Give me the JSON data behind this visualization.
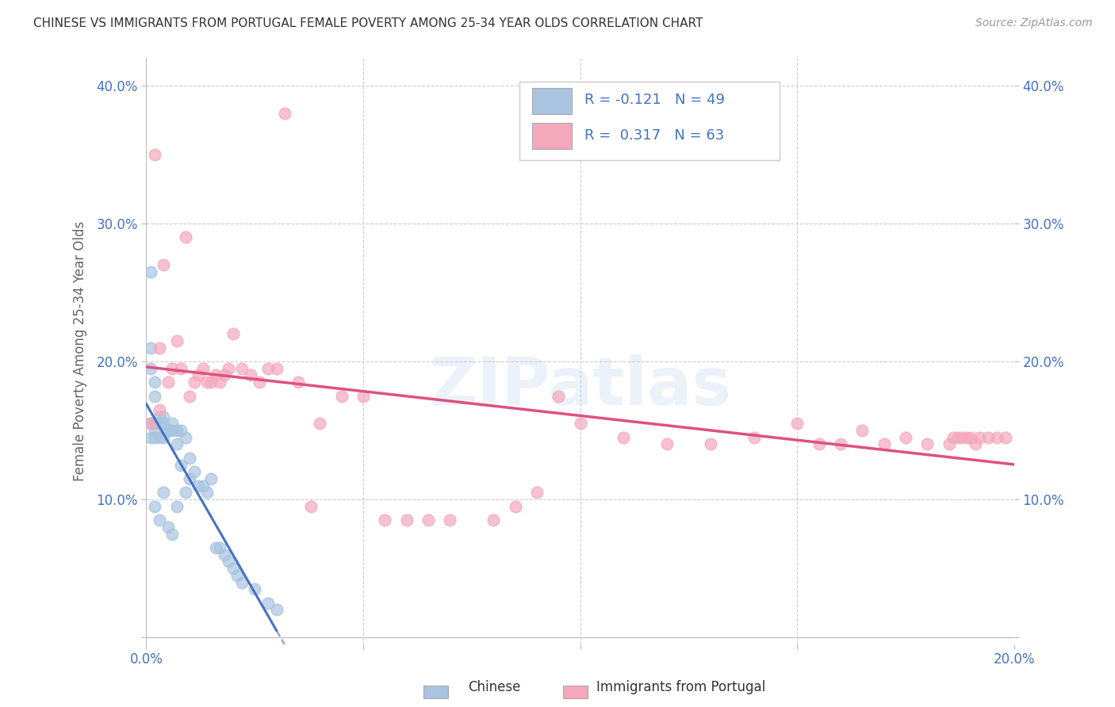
{
  "title": "CHINESE VS IMMIGRANTS FROM PORTUGAL FEMALE POVERTY AMONG 25-34 YEAR OLDS CORRELATION CHART",
  "source": "Source: ZipAtlas.com",
  "ylabel": "Female Poverty Among 25-34 Year Olds",
  "background_color": "#ffffff",
  "grid_color": "#cccccc",
  "watermark": "ZIPatlas",
  "chinese_color": "#a8c4e0",
  "portuguese_color": "#f4a8bc",
  "chinese_line_color": "#4472c4",
  "portuguese_line_color": "#e05080",
  "xlim": [
    0.0,
    0.2
  ],
  "ylim": [
    -0.005,
    0.42
  ],
  "xticks": [
    0.0,
    0.05,
    0.1,
    0.15,
    0.2
  ],
  "yticks": [
    0.0,
    0.1,
    0.2,
    0.3,
    0.4
  ],
  "xtick_labels": [
    "0.0%",
    "",
    "",
    "",
    "20.0%"
  ],
  "ytick_labels": [
    "",
    "10.0%",
    "20.0%",
    "30.0%",
    "40.0%"
  ],
  "right_ytick_labels": [
    "",
    "10.0%",
    "20.0%",
    "30.0%",
    "40.0%"
  ],
  "chinese_R": -0.121,
  "chinese_N": 49,
  "portuguese_R": 0.317,
  "portuguese_N": 63,
  "legend_text_color": "#4472c4",
  "chinese_x": [
    0.001,
    0.001,
    0.001,
    0.001,
    0.001,
    0.002,
    0.002,
    0.002,
    0.002,
    0.002,
    0.002,
    0.003,
    0.003,
    0.003,
    0.003,
    0.004,
    0.004,
    0.004,
    0.004,
    0.005,
    0.005,
    0.005,
    0.006,
    0.006,
    0.006,
    0.007,
    0.007,
    0.007,
    0.008,
    0.008,
    0.009,
    0.009,
    0.01,
    0.01,
    0.011,
    0.012,
    0.013,
    0.014,
    0.015,
    0.016,
    0.017,
    0.018,
    0.019,
    0.02,
    0.021,
    0.022,
    0.025,
    0.028,
    0.03
  ],
  "chinese_y": [
    0.265,
    0.21,
    0.195,
    0.155,
    0.145,
    0.185,
    0.175,
    0.155,
    0.15,
    0.145,
    0.095,
    0.16,
    0.155,
    0.145,
    0.085,
    0.16,
    0.155,
    0.145,
    0.105,
    0.15,
    0.15,
    0.08,
    0.155,
    0.15,
    0.075,
    0.15,
    0.14,
    0.095,
    0.15,
    0.125,
    0.145,
    0.105,
    0.13,
    0.115,
    0.12,
    0.11,
    0.11,
    0.105,
    0.115,
    0.065,
    0.065,
    0.06,
    0.055,
    0.05,
    0.045,
    0.04,
    0.035,
    0.025,
    0.02
  ],
  "portuguese_x": [
    0.001,
    0.002,
    0.003,
    0.003,
    0.004,
    0.005,
    0.006,
    0.007,
    0.008,
    0.009,
    0.01,
    0.011,
    0.012,
    0.013,
    0.014,
    0.015,
    0.016,
    0.017,
    0.018,
    0.019,
    0.02,
    0.022,
    0.024,
    0.026,
    0.028,
    0.03,
    0.032,
    0.035,
    0.038,
    0.04,
    0.045,
    0.05,
    0.055,
    0.06,
    0.065,
    0.07,
    0.08,
    0.085,
    0.09,
    0.095,
    0.1,
    0.11,
    0.12,
    0.13,
    0.14,
    0.15,
    0.155,
    0.16,
    0.165,
    0.17,
    0.175,
    0.18,
    0.185,
    0.186,
    0.187,
    0.188,
    0.189,
    0.19,
    0.191,
    0.192,
    0.194,
    0.196,
    0.198
  ],
  "portuguese_y": [
    0.155,
    0.35,
    0.21,
    0.165,
    0.27,
    0.185,
    0.195,
    0.215,
    0.195,
    0.29,
    0.175,
    0.185,
    0.19,
    0.195,
    0.185,
    0.185,
    0.19,
    0.185,
    0.19,
    0.195,
    0.22,
    0.195,
    0.19,
    0.185,
    0.195,
    0.195,
    0.38,
    0.185,
    0.095,
    0.155,
    0.175,
    0.175,
    0.085,
    0.085,
    0.085,
    0.085,
    0.085,
    0.095,
    0.105,
    0.175,
    0.155,
    0.145,
    0.14,
    0.14,
    0.145,
    0.155,
    0.14,
    0.14,
    0.15,
    0.14,
    0.145,
    0.14,
    0.14,
    0.145,
    0.145,
    0.145,
    0.145,
    0.145,
    0.14,
    0.145,
    0.145,
    0.145,
    0.145
  ]
}
